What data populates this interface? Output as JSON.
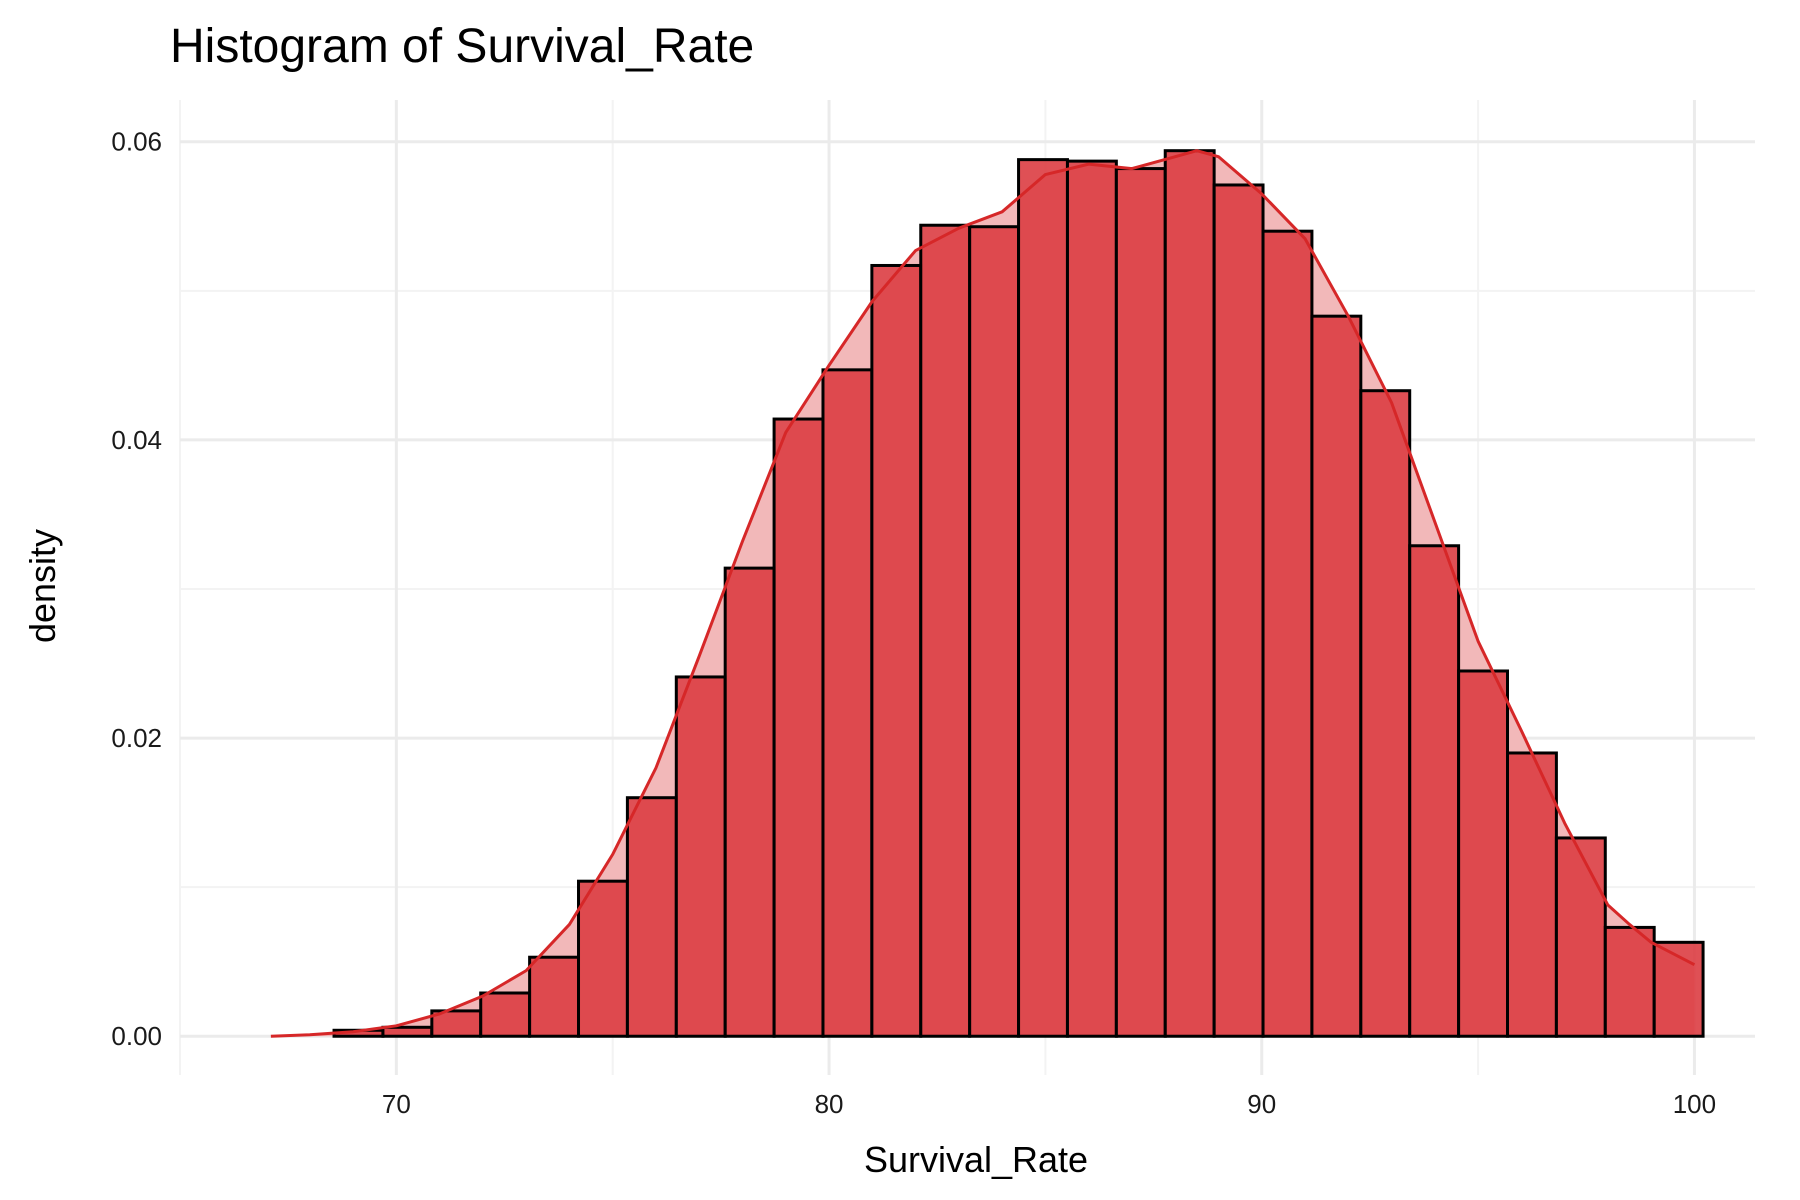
{
  "chart_data": {
    "type": "bar",
    "title": "Histogram of Survival_Rate",
    "xlabel": "Survival_Rate",
    "ylabel": "density",
    "xlim": [
      65,
      101.4
    ],
    "ylim": [
      -0.0026,
      0.0628
    ],
    "x_ticks": [
      70,
      80,
      90,
      100
    ],
    "x_tick_labels": [
      "70",
      "80",
      "90",
      "100"
    ],
    "x_minor_ticks": [
      65,
      75,
      85,
      95
    ],
    "y_ticks": [
      0.0,
      0.02,
      0.04,
      0.06
    ],
    "y_tick_labels": [
      "0.00",
      "0.02",
      "0.04",
      "0.06"
    ],
    "y_minor_ticks": [
      0.01,
      0.03,
      0.05
    ],
    "grid": true,
    "bins": {
      "edges": [
        66.3,
        67.43,
        68.56,
        69.69,
        70.82,
        71.95,
        73.08,
        74.21,
        75.34,
        76.47,
        77.6,
        78.73,
        79.86,
        80.99,
        82.12,
        83.25,
        84.38,
        85.51,
        86.64,
        87.77,
        88.9,
        90.03,
        91.16,
        92.29,
        93.42,
        94.55,
        95.68,
        96.81,
        97.94,
        99.07,
        100.2
      ],
      "density": [
        0.0,
        0.0,
        0.0004,
        0.0006,
        0.0017,
        0.0029,
        0.0053,
        0.0104,
        0.016,
        0.0241,
        0.0314,
        0.0414,
        0.0447,
        0.0517,
        0.0544,
        0.0543,
        0.0588,
        0.0587,
        0.0582,
        0.0594,
        0.0571,
        0.054,
        0.0483,
        0.0433,
        0.0329,
        0.0245,
        0.019,
        0.0133,
        0.0073,
        0.0063
      ]
    },
    "density_curve": {
      "x": [
        67.1,
        68,
        69,
        70,
        71,
        72,
        73,
        74,
        75,
        76,
        77,
        78,
        79,
        80,
        81,
        82,
        83,
        84,
        85,
        86,
        87,
        88,
        88.5,
        89,
        90,
        91,
        92,
        93,
        94,
        95,
        96,
        97,
        98,
        98.5,
        99,
        100
      ],
      "y": [
        0.0,
        0.0001,
        0.0003,
        0.0007,
        0.0015,
        0.0027,
        0.0044,
        0.0075,
        0.0122,
        0.018,
        0.0255,
        0.0332,
        0.0405,
        0.045,
        0.0493,
        0.0527,
        0.0542,
        0.0553,
        0.0578,
        0.0585,
        0.0582,
        0.059,
        0.0594,
        0.059,
        0.0565,
        0.0535,
        0.0483,
        0.0425,
        0.0345,
        0.0265,
        0.0205,
        0.0143,
        0.0088,
        0.0075,
        0.0063,
        0.0048
      ]
    },
    "colors": {
      "bar_fill": "#dc3d43",
      "bar_fill_opacity": 0.9,
      "bar_outline": "#000000",
      "density_line": "#d62728",
      "density_fill": "#f2b8b9",
      "grid_major": "#ebebeb",
      "grid_minor": "#f3f3f3",
      "background": "#ffffff"
    }
  }
}
